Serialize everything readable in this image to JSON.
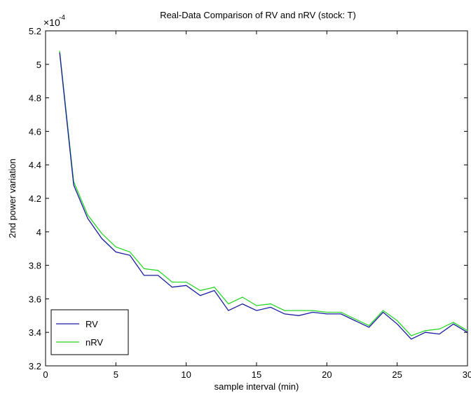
{
  "chart_data": {
    "type": "line",
    "title": "Real-Data Comparison of RV and nRV (stock: T)",
    "xlabel": "sample interval (min)",
    "ylabel": "2nd power variation",
    "y_multiplier": {
      "base": "×10",
      "exponent": "-4"
    },
    "xlim": [
      0,
      30
    ],
    "ylim": [
      3.2,
      5.2
    ],
    "x_ticks": [
      0,
      5,
      10,
      15,
      20,
      25,
      30
    ],
    "x_tick_labels": [
      "0",
      "5",
      "10",
      "15",
      "20",
      "25",
      "30"
    ],
    "y_ticks": [
      3.2,
      3.4,
      3.6,
      3.8,
      4.0,
      4.2,
      4.4,
      4.6,
      4.8,
      5.0,
      5.2
    ],
    "y_tick_labels": [
      "3.2",
      "3.4",
      "3.6",
      "3.8",
      "4",
      "4.2",
      "4.4",
      "4.6",
      "4.8",
      "5",
      "5.2"
    ],
    "grid": false,
    "legend": "bottom-left",
    "x": [
      1,
      2,
      3,
      4,
      5,
      6,
      7,
      8,
      9,
      10,
      11,
      12,
      13,
      14,
      15,
      16,
      17,
      18,
      19,
      20,
      21,
      22,
      23,
      24,
      25,
      26,
      27,
      28,
      29,
      30
    ],
    "series": [
      {
        "name": "RV",
        "color": "#1a1aa0",
        "values": [
          5.07,
          4.28,
          4.08,
          3.96,
          3.88,
          3.86,
          3.74,
          3.74,
          3.67,
          3.68,
          3.62,
          3.65,
          3.53,
          3.57,
          3.53,
          3.55,
          3.51,
          3.5,
          3.52,
          3.51,
          3.51,
          3.47,
          3.43,
          3.52,
          3.45,
          3.36,
          3.4,
          3.39,
          3.45,
          3.4
        ]
      },
      {
        "name": "nRV",
        "color": "#2ad62a",
        "values": [
          5.08,
          4.3,
          4.1,
          3.99,
          3.91,
          3.88,
          3.78,
          3.77,
          3.7,
          3.7,
          3.65,
          3.67,
          3.57,
          3.61,
          3.56,
          3.57,
          3.53,
          3.53,
          3.53,
          3.52,
          3.52,
          3.48,
          3.44,
          3.53,
          3.47,
          3.38,
          3.41,
          3.42,
          3.46,
          3.41
        ]
      }
    ]
  }
}
